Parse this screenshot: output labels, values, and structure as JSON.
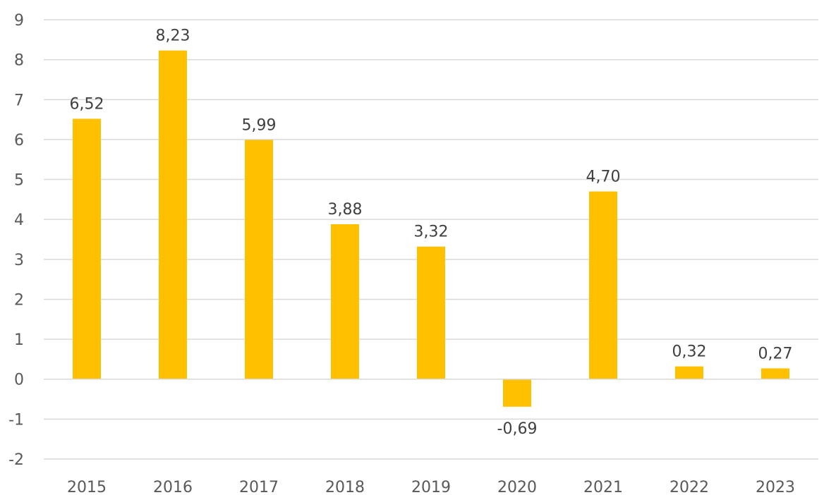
{
  "chart_data": {
    "type": "bar",
    "title": "",
    "xlabel": "",
    "ylabel": "",
    "categories": [
      "2015",
      "2016",
      "2017",
      "2018",
      "2019",
      "2020",
      "2021",
      "2022",
      "2023"
    ],
    "values": [
      6.52,
      8.23,
      5.99,
      3.88,
      3.32,
      -0.69,
      4.7,
      0.32,
      0.27
    ],
    "data_labels": [
      "6,52",
      "8,23",
      "5,99",
      "3,88",
      "3,32",
      "-0,69",
      "4,70",
      "0,32",
      "0,27"
    ],
    "y_ticks": [
      "9",
      "8",
      "7",
      "6",
      "5",
      "4",
      "3",
      "2",
      "1",
      "0",
      "-1",
      "-2"
    ],
    "ylim": [
      -2,
      9
    ],
    "grid": true,
    "legend": "none",
    "bar_color": "#FFC000"
  }
}
